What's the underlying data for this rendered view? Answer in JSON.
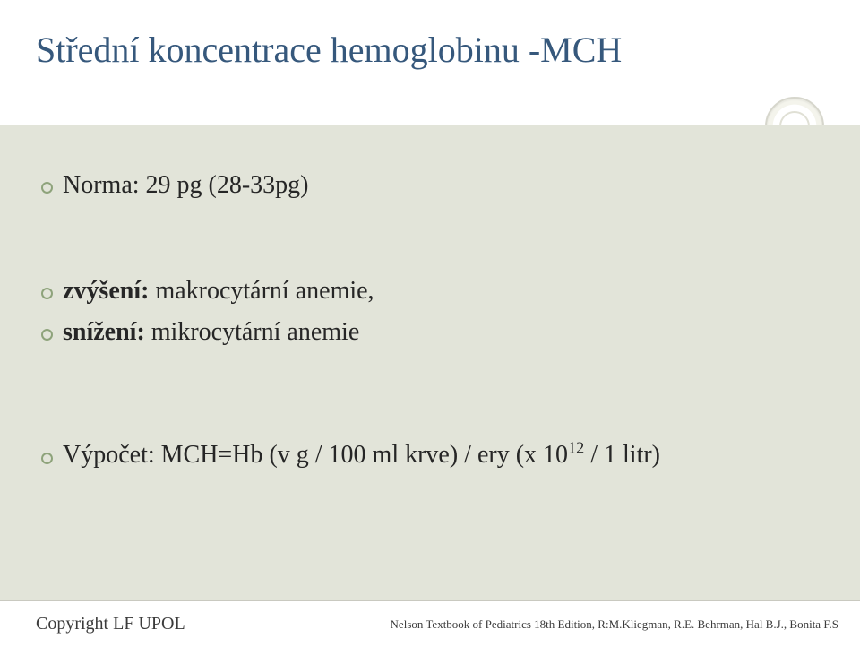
{
  "colors": {
    "title": "#36587c",
    "body_bg": "#e2e4d9",
    "bullet_ring": "#8ea37b",
    "text": "#262626",
    "divider": "#c9c9c0"
  },
  "title": "Střední koncentrace hemoglobinu -MCH",
  "bullets": {
    "norma": "Norma: 29 pg (28-33pg)",
    "zvyseni_label": "zvýšení:",
    "zvyseni_text": " makrocytární anemie,",
    "snizeni_label": "snížení:",
    "snizeni_text": " mikrocytární anemie",
    "vypocet_pre": "Výpočet: MCH=Hb (v g / 100 ml krve) / ery (x 10",
    "vypocet_sup": "12",
    "vypocet_post": " / 1 litr)"
  },
  "footer": {
    "left": "Copyright LF UPOL",
    "right": "Nelson Textbook of Pediatrics 18th Edition, R:M.Kliegman, R.E. Behrman, Hal B.J., Bonita F.S"
  }
}
